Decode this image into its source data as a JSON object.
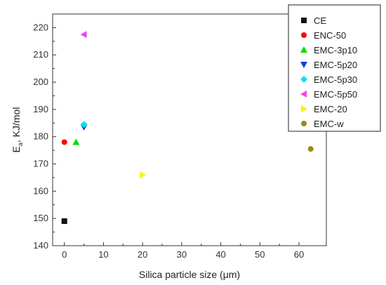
{
  "chart_data": {
    "type": "scatter",
    "xlabel": "Silica particle size (μm)",
    "ylabel": "E",
    "ylabel_subscript": "a",
    "ylabel_suffix": ", KJ/mol",
    "xlim": [
      -3,
      67
    ],
    "ylim": [
      140,
      225
    ],
    "x_ticks": [
      0,
      10,
      20,
      30,
      40,
      50,
      60
    ],
    "y_ticks": [
      140,
      150,
      160,
      170,
      180,
      190,
      200,
      210,
      220
    ],
    "legend_position": "top-right",
    "series": [
      {
        "name": "CE",
        "color": "#111111",
        "marker": "square",
        "points": [
          {
            "x": 0,
            "y": 149
          }
        ]
      },
      {
        "name": "ENC-50",
        "color": "#ff0000",
        "marker": "circle",
        "points": [
          {
            "x": 0,
            "y": 178
          }
        ]
      },
      {
        "name": "EMC-3p10",
        "color": "#00dd00",
        "marker": "triangle-up",
        "points": [
          {
            "x": 3,
            "y": 178
          }
        ]
      },
      {
        "name": "EMC-5p20",
        "color": "#1a3adf",
        "marker": "triangle-down",
        "points": [
          {
            "x": 5,
            "y": 183.5
          }
        ]
      },
      {
        "name": "EMC-5p30",
        "color": "#00e5ee",
        "marker": "diamond",
        "points": [
          {
            "x": 5,
            "y": 184.5
          }
        ]
      },
      {
        "name": "EMC-5p50",
        "color": "#ee44ee",
        "marker": "triangle-left",
        "points": [
          {
            "x": 5,
            "y": 217.5
          }
        ]
      },
      {
        "name": "EMC-20",
        "color": "#f5f500",
        "marker": "triangle-right",
        "points": [
          {
            "x": 20,
            "y": 166
          }
        ]
      },
      {
        "name": "EMC-w",
        "color": "#9b8a14",
        "marker": "circle",
        "points": [
          {
            "x": 63,
            "y": 175.5
          }
        ]
      }
    ]
  }
}
